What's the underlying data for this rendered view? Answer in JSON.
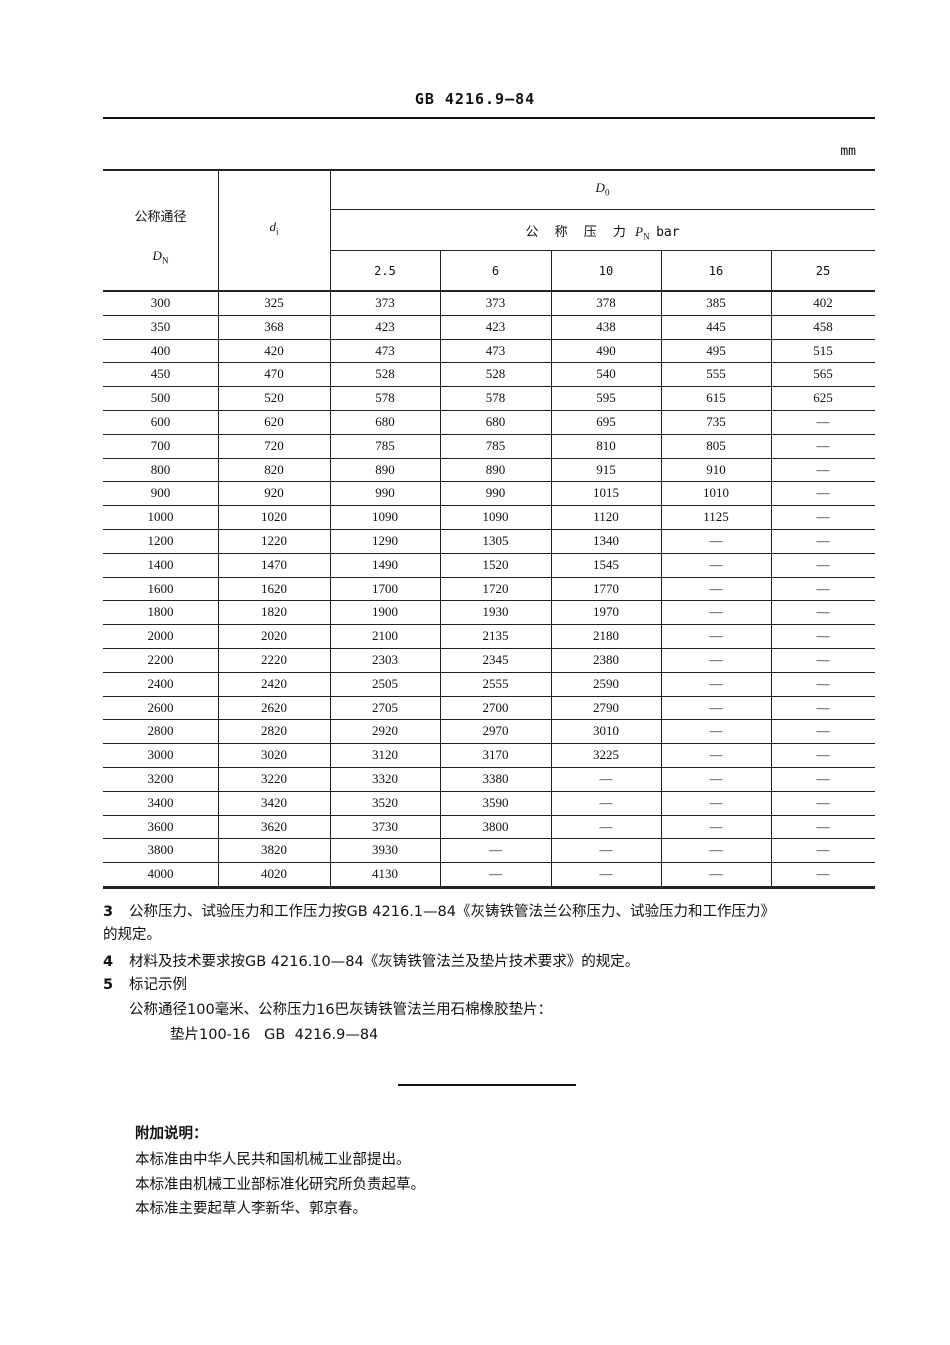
{
  "header": {
    "title": "GB 4216.9—84",
    "unit": "mm"
  },
  "table": {
    "col_dn_label": "公称通径",
    "col_dn_symbol": "D",
    "col_dn_sub": "N",
    "col_di_symbol": "d",
    "col_di_sub": "i",
    "group_symbol": "D",
    "group_sub": "0",
    "pressure_label": "公 称 压 力",
    "pressure_symbol": "P",
    "pressure_sub": "N",
    "pressure_unit": "bar",
    "pressures": [
      "2.5",
      "6",
      "10",
      "16",
      "25"
    ],
    "rows": [
      [
        "300",
        "325",
        "373",
        "373",
        "378",
        "385",
        "402"
      ],
      [
        "350",
        "368",
        "423",
        "423",
        "438",
        "445",
        "458"
      ],
      [
        "400",
        "420",
        "473",
        "473",
        "490",
        "495",
        "515"
      ],
      [
        "450",
        "470",
        "528",
        "528",
        "540",
        "555",
        "565"
      ],
      [
        "500",
        "520",
        "578",
        "578",
        "595",
        "615",
        "625"
      ],
      [
        "600",
        "620",
        "680",
        "680",
        "695",
        "735",
        "—"
      ],
      [
        "700",
        "720",
        "785",
        "785",
        "810",
        "805",
        "—"
      ],
      [
        "800",
        "820",
        "890",
        "890",
        "915",
        "910",
        "—"
      ],
      [
        "900",
        "920",
        "990",
        "990",
        "1015",
        "1010",
        "—"
      ],
      [
        "1000",
        "1020",
        "1090",
        "1090",
        "1120",
        "1125",
        "—"
      ],
      [
        "1200",
        "1220",
        "1290",
        "1305",
        "1340",
        "—",
        "—"
      ],
      [
        "1400",
        "1470",
        "1490",
        "1520",
        "1545",
        "—",
        "—"
      ],
      [
        "1600",
        "1620",
        "1700",
        "1720",
        "1770",
        "—",
        "—"
      ],
      [
        "1800",
        "1820",
        "1900",
        "1930",
        "1970",
        "—",
        "—"
      ],
      [
        "2000",
        "2020",
        "2100",
        "2135",
        "2180",
        "—",
        "—"
      ],
      [
        "2200",
        "2220",
        "2303",
        "2345",
        "2380",
        "—",
        "—"
      ],
      [
        "2400",
        "2420",
        "2505",
        "2555",
        "2590",
        "—",
        "—"
      ],
      [
        "2600",
        "2620",
        "2705",
        "2700",
        "2790",
        "—",
        "—"
      ],
      [
        "2800",
        "2820",
        "2920",
        "2970",
        "3010",
        "—",
        "—"
      ],
      [
        "3000",
        "3020",
        "3120",
        "3170",
        "3225",
        "—",
        "—"
      ],
      [
        "3200",
        "3220",
        "3320",
        "3380",
        "—",
        "—",
        "—"
      ],
      [
        "3400",
        "3420",
        "3520",
        "3590",
        "—",
        "—",
        "—"
      ],
      [
        "3600",
        "3620",
        "3730",
        "3800",
        "—",
        "—",
        "—"
      ],
      [
        "3800",
        "3820",
        "3930",
        "—",
        "—",
        "—",
        "—"
      ],
      [
        "4000",
        "4020",
        "4130",
        "—",
        "—",
        "—",
        "—"
      ]
    ]
  },
  "notes": {
    "item3_num": "3",
    "item3_line1": "公称压力、试验压力和工作压力按GB  4216.1—84《灰铸铁管法兰公称压力、试验压力和工作压力》",
    "item3_line2": "的规定。",
    "item4_num": "4",
    "item4_text": "材料及技术要求按GB  4216.10—84《灰铸铁管法兰及垫片技术要求》的规定。",
    "item5_num": "5",
    "item5_text": "标记示例",
    "example_desc": "公称通径100毫米、公称压力16巴灰铸铁管法兰用石棉橡胶垫片：",
    "example_mark": "垫片100-16   GB  4216.9—84"
  },
  "appendix": {
    "heading": "附加说明：",
    "lines": [
      "本标准由中华人民共和国机械工业部提出。",
      "本标准由机械工业部标准化研究所负责起草。",
      "本标准主要起草人李新华、郭京春。"
    ]
  }
}
